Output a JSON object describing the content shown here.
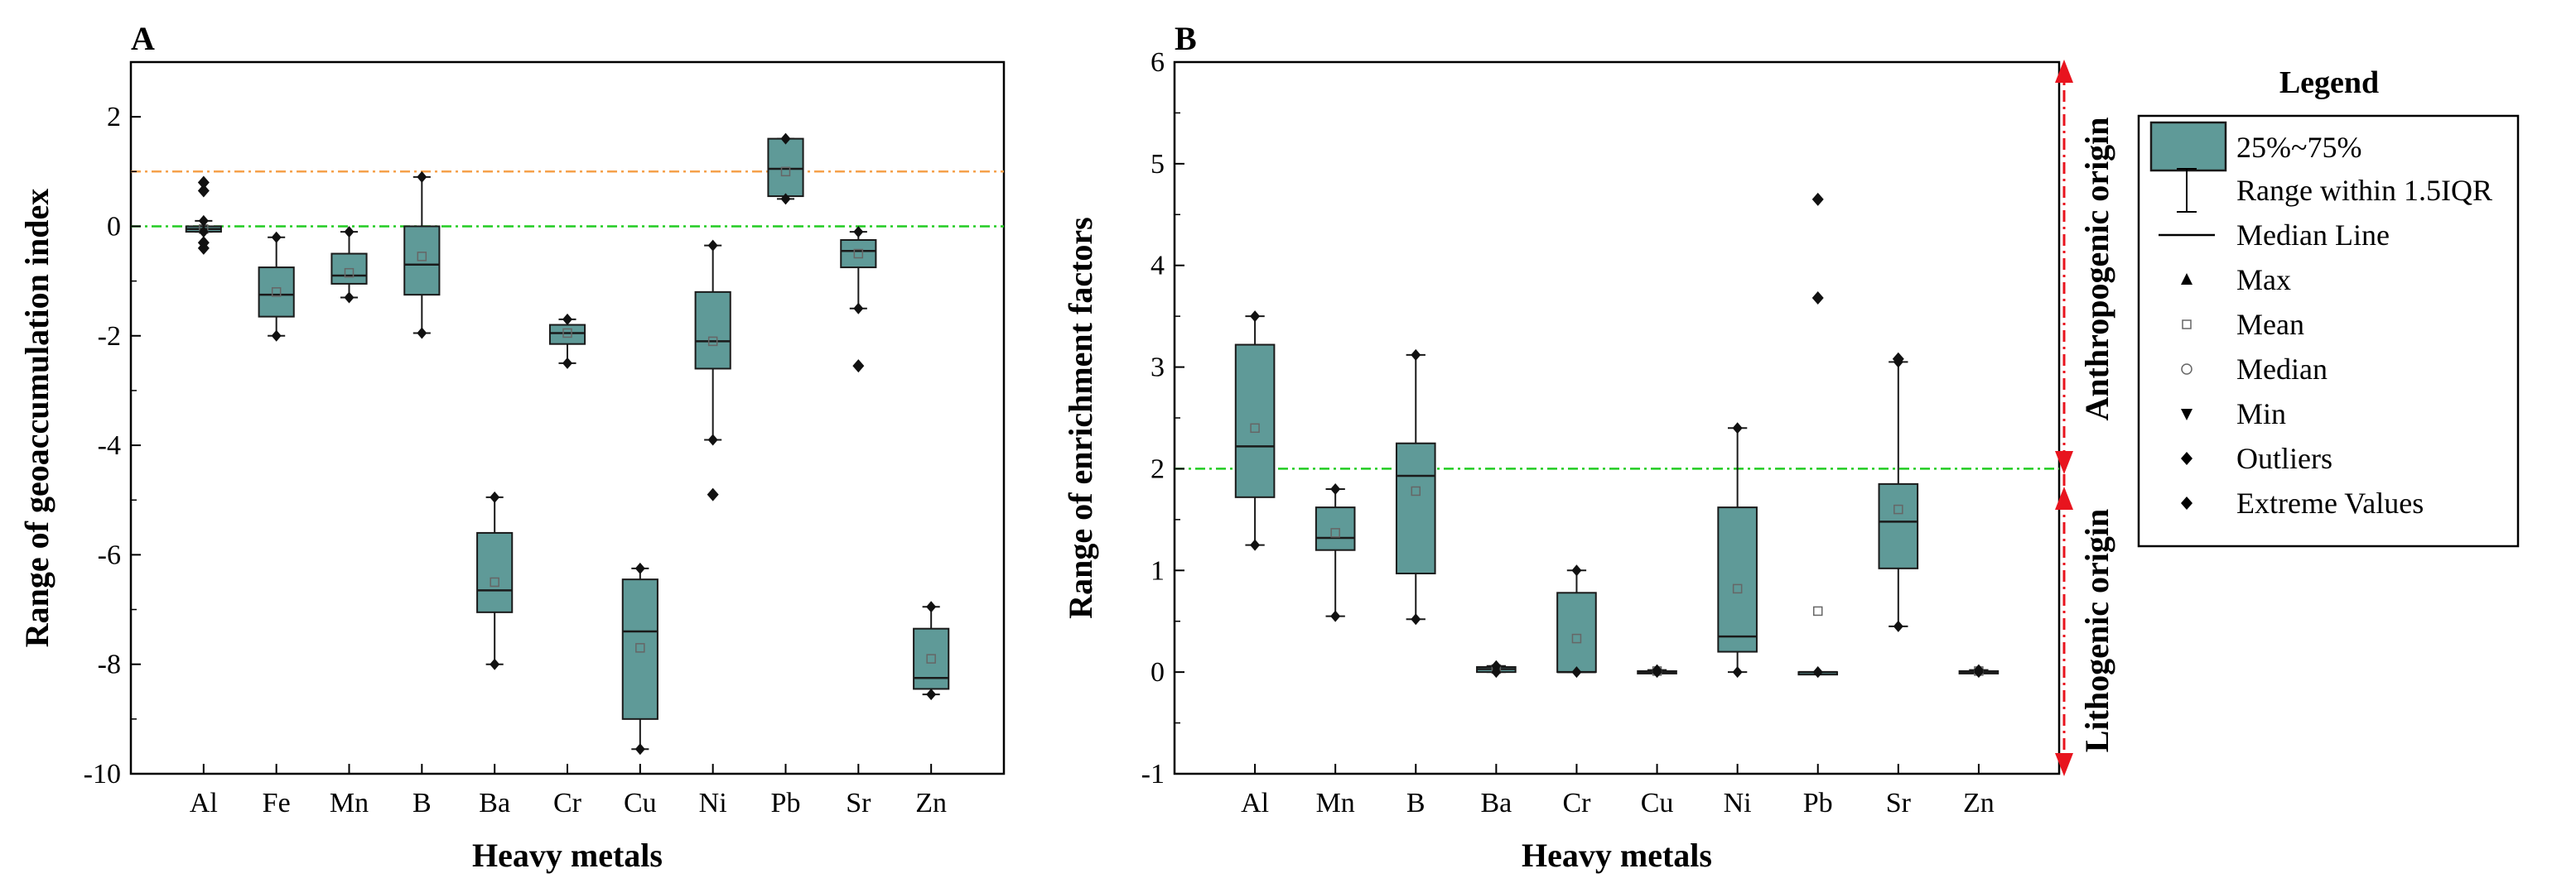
{
  "colors": {
    "box_fill": "#5F9A98",
    "box_stroke": "#1a1a1a",
    "threshold_orange": "#F5A14B",
    "threshold_green": "#22CC22",
    "arrow_red": "#E8141E"
  },
  "chart_data": [
    {
      "type": "box",
      "panel": "A",
      "xlabel": "Heavy metals",
      "ylabel": "Range of geoaccumulation index",
      "ylim": [
        -10,
        3
      ],
      "yticks": [
        -10,
        -8,
        -6,
        -4,
        -2,
        0,
        2
      ],
      "ytick_labels": [
        "-10",
        "-8",
        "-6",
        "-4",
        "-2",
        "0",
        "2"
      ],
      "reference_lines": [
        {
          "y": 1,
          "color": "orange",
          "style": "dash-dot"
        },
        {
          "y": 0,
          "color": "green",
          "style": "dash-dot"
        }
      ],
      "categories": [
        "Al",
        "Fe",
        "Mn",
        "B",
        "Ba",
        "Cr",
        "Cu",
        "Ni",
        "Pb",
        "Sr",
        "Zn"
      ],
      "boxes": [
        {
          "q1": -0.1,
          "median": -0.05,
          "q3": 0.0,
          "wlo": -0.1,
          "whi": 0.1,
          "mean": -0.05,
          "outliers": [
            0.8,
            0.65,
            -0.3,
            -0.4
          ]
        },
        {
          "q1": -1.65,
          "median": -1.25,
          "q3": -0.75,
          "wlo": -2.0,
          "whi": -0.2,
          "mean": -1.2,
          "outliers": []
        },
        {
          "q1": -1.05,
          "median": -0.9,
          "q3": -0.5,
          "wlo": -1.3,
          "whi": -0.1,
          "mean": -0.85,
          "outliers": []
        },
        {
          "q1": -1.25,
          "median": -0.7,
          "q3": 0.0,
          "wlo": -1.95,
          "whi": 0.9,
          "mean": -0.55,
          "outliers": []
        },
        {
          "q1": -7.05,
          "median": -6.65,
          "q3": -5.6,
          "wlo": -8.0,
          "whi": -4.95,
          "mean": -6.5,
          "outliers": []
        },
        {
          "q1": -2.15,
          "median": -1.95,
          "q3": -1.8,
          "wlo": -2.5,
          "whi": -1.7,
          "mean": -1.95,
          "outliers": []
        },
        {
          "q1": -9.0,
          "median": -7.4,
          "q3": -6.45,
          "wlo": -9.55,
          "whi": -6.25,
          "mean": -7.7,
          "outliers": []
        },
        {
          "q1": -2.6,
          "median": -2.1,
          "q3": -1.2,
          "wlo": -3.9,
          "whi": -0.35,
          "mean": -2.1,
          "outliers": [
            -4.9
          ]
        },
        {
          "q1": 0.55,
          "median": 1.05,
          "q3": 1.6,
          "wlo": 0.5,
          "whi": 1.6,
          "mean": 1.0,
          "outliers": []
        },
        {
          "q1": -0.75,
          "median": -0.45,
          "q3": -0.25,
          "wlo": -1.5,
          "whi": -0.1,
          "mean": -0.5,
          "outliers": [
            -2.55
          ]
        },
        {
          "q1": -8.45,
          "median": -8.25,
          "q3": -7.35,
          "wlo": -8.55,
          "whi": -6.95,
          "mean": -7.9,
          "outliers": []
        }
      ]
    },
    {
      "type": "box",
      "panel": "B",
      "xlabel": "Heavy metals",
      "ylabel": "Range of enrichment factors",
      "ylim": [
        -1,
        6
      ],
      "yticks": [
        -1,
        0,
        1,
        2,
        3,
        4,
        5,
        6
      ],
      "ytick_labels": [
        "-1",
        "0",
        "1",
        "2",
        "3",
        "4",
        "5",
        "6"
      ],
      "reference_lines": [
        {
          "y": 2,
          "color": "green",
          "style": "dash-dot"
        }
      ],
      "categories": [
        "Al",
        "Mn",
        "B",
        "Ba",
        "Cr",
        "Cu",
        "Ni",
        "Pb",
        "Sr",
        "Zn"
      ],
      "boxes": [
        {
          "q1": 1.72,
          "median": 2.22,
          "q3": 3.22,
          "wlo": 1.25,
          "whi": 3.5,
          "mean": 2.4,
          "outliers": []
        },
        {
          "q1": 1.2,
          "median": 1.32,
          "q3": 1.62,
          "wlo": 0.55,
          "whi": 1.8,
          "mean": 1.37,
          "outliers": []
        },
        {
          "q1": 0.97,
          "median": 1.93,
          "q3": 2.25,
          "wlo": 0.52,
          "whi": 3.12,
          "mean": 1.78,
          "outliers": []
        },
        {
          "q1": 0.0,
          "median": 0.03,
          "q3": 0.05,
          "wlo": 0.0,
          "whi": 0.06,
          "mean": 0.03,
          "outliers": []
        },
        {
          "q1": 0.0,
          "median": 0.0,
          "q3": 0.78,
          "wlo": 0.0,
          "whi": 1.0,
          "mean": 0.33,
          "outliers": []
        },
        {
          "q1": 0.0,
          "median": 0.0,
          "q3": 0.01,
          "wlo": 0.0,
          "whi": 0.02,
          "mean": 0.01,
          "outliers": []
        },
        {
          "q1": 0.2,
          "median": 0.35,
          "q3": 1.62,
          "wlo": 0.0,
          "whi": 2.4,
          "mean": 0.82,
          "outliers": []
        },
        {
          "q1": 0.0,
          "median": 0.0,
          "q3": 0.0,
          "wlo": 0.0,
          "whi": 0.0,
          "mean": 0.6,
          "outliers": [
            4.65,
            3.68
          ]
        },
        {
          "q1": 1.02,
          "median": 1.48,
          "q3": 1.85,
          "wlo": 0.45,
          "whi": 3.05,
          "mean": 1.6,
          "outliers": [
            3.08
          ]
        },
        {
          "q1": 0.0,
          "median": 0.0,
          "q3": 0.01,
          "wlo": 0.0,
          "whi": 0.02,
          "mean": 0.01,
          "outliers": []
        }
      ],
      "annotations": [
        "Anthropogenic origin",
        "Lithogenic origin"
      ]
    }
  ],
  "legend": {
    "title": "Legend",
    "items": [
      {
        "symbol": "box",
        "label": "25%~75%"
      },
      {
        "symbol": "whisker",
        "label": "Range within 1.5IQR"
      },
      {
        "symbol": "line",
        "label": "Median Line"
      },
      {
        "symbol": "triangle-up",
        "label": "Max"
      },
      {
        "symbol": "square-open",
        "label": "Mean"
      },
      {
        "symbol": "circle-open",
        "label": "Median"
      },
      {
        "symbol": "triangle-down",
        "label": "Min"
      },
      {
        "symbol": "diamond",
        "label": "Outliers"
      },
      {
        "symbol": "diamond",
        "label": "Extreme Values"
      }
    ]
  }
}
